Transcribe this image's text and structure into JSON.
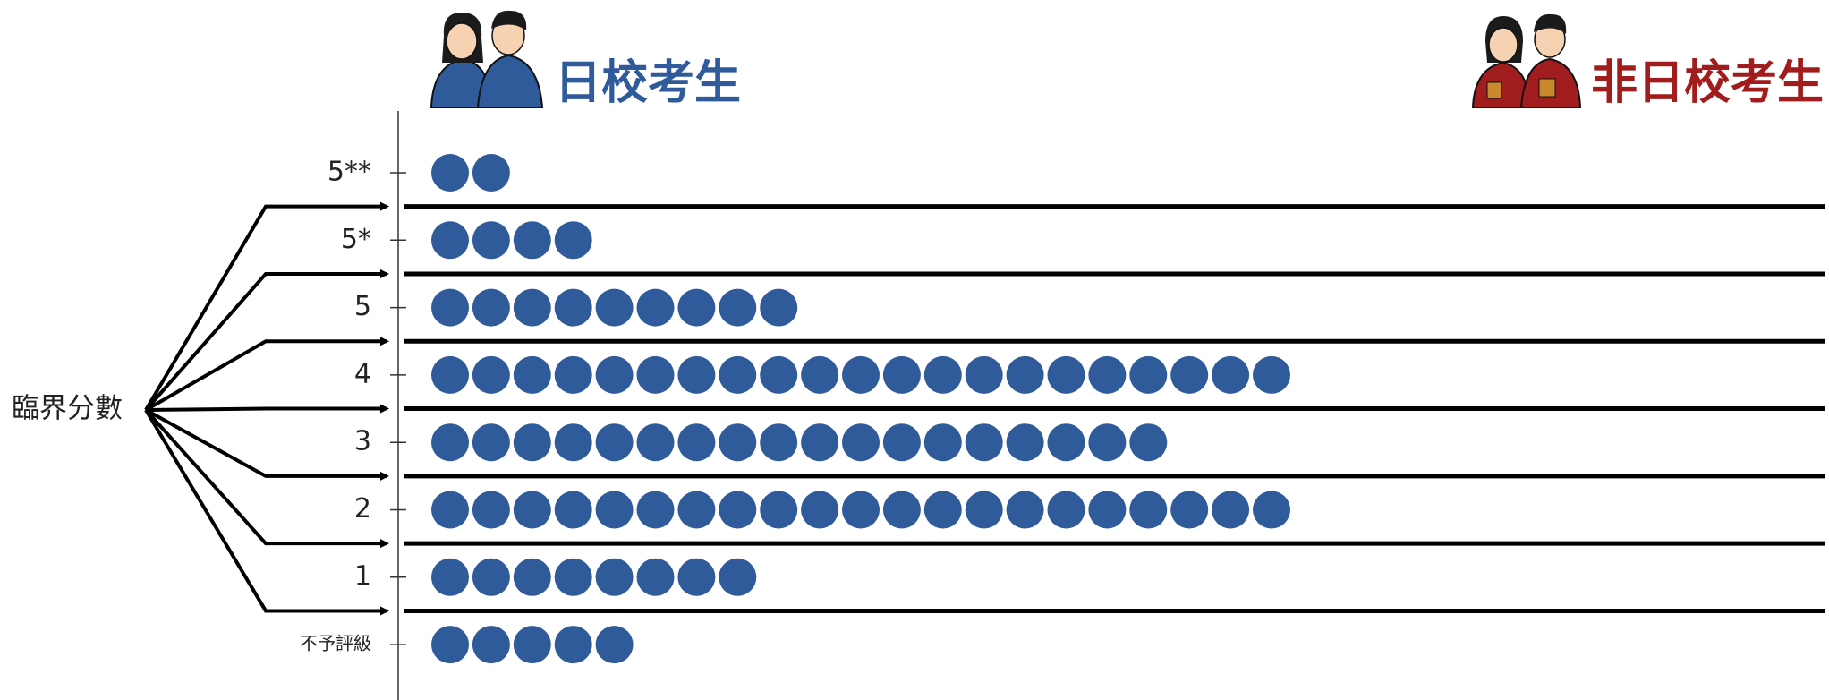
{
  "chart_data": {
    "type": "dot",
    "categories": [
      "5**",
      "5*",
      "5",
      "4",
      "3",
      "2",
      "1",
      "不予評級"
    ],
    "series": [
      {
        "name": "日校考生",
        "color": "#2f5b9a",
        "values": [
          2,
          4,
          9,
          21,
          18,
          21,
          8,
          5
        ]
      }
    ],
    "right_header": "非日校考生",
    "annotation": "臨界分數"
  }
}
